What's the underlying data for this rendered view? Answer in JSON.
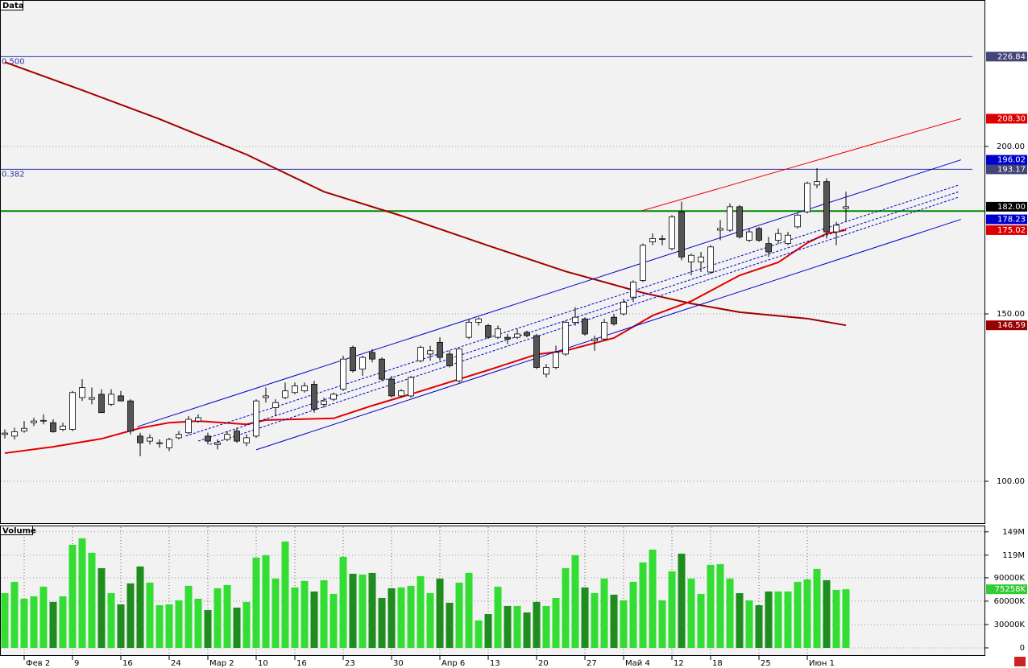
{
  "chart_data": [
    {
      "type": "candlestick",
      "title": "Data",
      "categories": [
        null,
        null,
        "Фев 2",
        null,
        null,
        null,
        null,
        "9",
        null,
        null,
        null,
        null,
        "16",
        null,
        null,
        null,
        null,
        "24",
        null,
        null,
        null,
        "Мар 2",
        null,
        null,
        null,
        null,
        "10",
        null,
        null,
        null,
        "16",
        null,
        null,
        null,
        null,
        "23",
        null,
        null,
        null,
        null,
        "30",
        null,
        null,
        null,
        null,
        "Апр 6",
        null,
        null,
        null,
        null,
        "13",
        null,
        null,
        null,
        null,
        "20",
        null,
        null,
        null,
        null,
        "27",
        null,
        null,
        null,
        "Май 4",
        null,
        null,
        null,
        null,
        "12",
        null,
        null,
        null,
        "18",
        null,
        null,
        null,
        null,
        "25",
        null,
        null,
        null,
        null,
        "Июн 1",
        null,
        null,
        null,
        null
      ],
      "open": [
        114.0,
        113.5,
        115.0,
        117.5,
        118.0,
        117.5,
        115.5,
        115.5,
        125.0,
        124.5,
        126.0,
        123.0,
        125.5,
        124.0,
        113.5,
        112.0,
        111.5,
        110.0,
        113.0,
        114.5,
        118.0,
        113.5,
        111.0,
        112.5,
        115.0,
        111.5,
        113.5,
        125.0,
        122.0,
        125.0,
        126.5,
        127.0,
        129.0,
        123.0,
        124.5,
        127.5,
        140.0,
        133.5,
        138.5,
        136.5,
        130.5,
        125.5,
        125.5,
        136.0,
        138.0,
        141.5,
        138.0,
        130.0,
        143.0,
        147.5,
        146.5,
        143.0,
        143.0,
        143.0,
        144.5,
        143.5,
        132.0,
        134.0,
        138.0,
        147.5,
        148.5,
        142.0,
        142.5,
        149.0,
        150.0,
        155.0,
        160.0,
        171.5,
        172.5,
        169.5,
        180.5,
        165.5,
        165.5,
        162.5,
        175.0,
        175.0,
        182.0,
        172.0,
        175.5,
        171.0,
        172.0,
        171.0,
        176.0,
        180.5,
        188.5,
        189.5,
        174.5,
        181.5
      ],
      "high": [
        115.5,
        116.0,
        118.0,
        119.0,
        120.0,
        118.5,
        117.5,
        127.0,
        130.5,
        128.0,
        127.5,
        127.5,
        127.0,
        124.5,
        114.5,
        114.0,
        112.5,
        113.0,
        115.0,
        119.5,
        120.0,
        114.5,
        112.5,
        115.0,
        116.0,
        114.0,
        124.5,
        128.0,
        124.5,
        129.5,
        129.5,
        129.5,
        130.0,
        125.0,
        126.5,
        137.5,
        140.5,
        137.5,
        139.5,
        137.0,
        131.5,
        127.5,
        131.5,
        140.5,
        140.5,
        143.0,
        139.0,
        139.5,
        148.5,
        149.0,
        147.0,
        146.5,
        144.0,
        145.5,
        145.0,
        144.0,
        135.0,
        140.5,
        148.0,
        152.0,
        149.0,
        143.5,
        148.5,
        150.0,
        154.5,
        160.0,
        171.0,
        174.0,
        173.5,
        179.5,
        183.5,
        168.0,
        168.5,
        170.5,
        178.0,
        183.0,
        182.5,
        175.5,
        176.0,
        173.0,
        175.5,
        174.5,
        180.0,
        189.5,
        193.5,
        190.5,
        177.5,
        186.5
      ],
      "low": [
        112.8,
        112.5,
        114.5,
        116.5,
        117.0,
        114.5,
        115.0,
        115.0,
        124.0,
        123.0,
        120.5,
        122.5,
        124.0,
        114.0,
        107.5,
        111.0,
        110.0,
        109.0,
        112.5,
        114.0,
        117.5,
        111.0,
        109.5,
        112.0,
        111.5,
        110.5,
        113.0,
        123.5,
        119.5,
        124.5,
        126.0,
        126.5,
        120.5,
        122.0,
        124.0,
        127.0,
        132.5,
        131.5,
        135.5,
        130.0,
        125.0,
        125.0,
        125.0,
        135.5,
        136.0,
        136.0,
        134.0,
        129.5,
        142.5,
        146.5,
        142.5,
        142.5,
        141.0,
        142.5,
        143.0,
        133.5,
        131.0,
        133.5,
        137.5,
        146.5,
        143.5,
        139.0,
        142.0,
        146.5,
        149.5,
        153.5,
        159.5,
        170.5,
        170.5,
        169.0,
        166.0,
        161.5,
        162.5,
        162.0,
        172.0,
        174.5,
        172.5,
        171.5,
        171.5,
        167.0,
        171.0,
        170.5,
        175.5,
        180.0,
        187.5,
        172.5,
        170.5,
        177.5
      ],
      "close": [
        114.4,
        114.8,
        115.8,
        118.0,
        118.2,
        114.8,
        116.5,
        126.5,
        128.0,
        125.0,
        120.5,
        126.0,
        124.0,
        115.0,
        111.5,
        113.0,
        111.5,
        112.5,
        114.0,
        118.5,
        119.0,
        112.0,
        111.5,
        114.0,
        112.0,
        113.0,
        124.0,
        125.5,
        123.5,
        127.0,
        128.5,
        128.5,
        121.5,
        124.0,
        126.0,
        136.5,
        133.0,
        137.0,
        136.5,
        130.5,
        125.5,
        127.0,
        131.0,
        140.0,
        139.0,
        137.0,
        134.5,
        139.5,
        147.5,
        148.5,
        143.0,
        145.5,
        142.5,
        144.0,
        143.5,
        134.0,
        134.0,
        138.5,
        147.5,
        149.0,
        144.0,
        142.5,
        147.5,
        147.0,
        153.5,
        159.5,
        170.5,
        172.5,
        172.5,
        179.0,
        167.0,
        167.5,
        167.0,
        170.0,
        175.5,
        182.0,
        173.0,
        174.5,
        172.0,
        168.5,
        174.0,
        173.5,
        179.5,
        189.0,
        189.5,
        174.5,
        176.5,
        182.0
      ],
      "last_close_label": "182.00",
      "last_close_color": "#000000",
      "up_color": "#ffffff",
      "down_color": "#555555",
      "xlim": [
        -0.5,
        101.33
      ],
      "ylim": [
        87.5,
        243.75
      ],
      "yticks": [
        {
          "value": 100,
          "label": "100.00"
        },
        {
          "value": 150,
          "label": "150.00"
        },
        {
          "value": 200,
          "label": "200.00"
        }
      ],
      "grid": true,
      "fib_levels": [
        {
          "label": "0.500",
          "value": 226.84,
          "color": "#3333aa",
          "tag_color": "#444477"
        },
        {
          "label": "0.382",
          "value": 193.17,
          "color": "#3333aa",
          "tag_color": "#444477"
        }
      ],
      "hlines": [
        {
          "value": 180.7,
          "color": "#008800"
        }
      ],
      "overlays": [
        {
          "color": "#a00000",
          "width": 2,
          "dash": false,
          "tag_color": "#990000",
          "x": [
            0,
            8,
            16,
            25,
            33,
            41,
            50,
            58,
            66,
            71,
            76,
            83,
            87
          ],
          "values": [
            225.2,
            216.8,
            208.2,
            197.6,
            186.5,
            179.3,
            170.4,
            162.7,
            156.3,
            153.1,
            150.5,
            148.6,
            146.59
          ]
        },
        {
          "color": "#e00000",
          "width": 2,
          "dash": false,
          "tag_color": "#dd0000",
          "x": [
            0,
            5,
            10,
            14,
            17,
            20,
            25,
            27,
            34,
            38,
            43,
            50,
            55,
            58,
            63,
            67,
            71,
            76,
            80,
            83,
            85,
            87
          ],
          "values": [
            108.4,
            110.3,
            112.7,
            115.9,
            117.5,
            118,
            117,
            118.3,
            118.8,
            122.6,
            126.9,
            133.2,
            137.9,
            139,
            142.8,
            149.5,
            153.8,
            161.5,
            165.4,
            171.2,
            174,
            175.02
          ]
        },
        {
          "color": "#ee0000",
          "width": 1,
          "dash": false,
          "tag_color": "#dd0000",
          "x": [
            65.9,
            98.9
          ],
          "values": [
            180.8,
            208.3
          ],
          "value_labels": [
            null,
            "208.30"
          ]
        },
        {
          "color": "#0000cc",
          "width": 1,
          "dash": false,
          "tag_color": "#0000cc",
          "x": [
            13.7,
            98.9
          ],
          "values": [
            116.3,
            196.02
          ]
        },
        {
          "color": "#0000cc",
          "width": 1,
          "dash": false,
          "tag_color": "#0000cc",
          "x": [
            26,
            98.9
          ],
          "values": [
            109.4,
            178.23
          ]
        },
        {
          "color": "#0000cc",
          "width": 1,
          "dash": true,
          "x": [
            18.7,
            98.7
          ],
          "values": [
            113.5,
            188.5
          ]
        },
        {
          "color": "#0000cc",
          "width": 1,
          "dash": true,
          "x": [
            20,
            98.7
          ],
          "values": [
            112,
            186.5
          ]
        },
        {
          "color": "#0000cc",
          "width": 1,
          "dash": true,
          "x": [
            21.2,
            98.7
          ],
          "values": [
            111,
            184.9
          ]
        }
      ]
    },
    {
      "type": "bar",
      "title": "Volume",
      "values": [
        70300,
        84800,
        63100,
        66200,
        78600,
        59000,
        66200,
        132400,
        140700,
        122100,
        102400,
        70300,
        55900,
        82800,
        104500,
        83800,
        54800,
        55900,
        61000,
        79700,
        63100,
        48600,
        76600,
        80700,
        51700,
        59000,
        115900,
        119000,
        89000,
        136600,
        77600,
        85900,
        72400,
        86900,
        69300,
        116900,
        95200,
        94100,
        96200,
        64100,
        76600,
        77600,
        79700,
        92100,
        70300,
        89000,
        57900,
        83800,
        96200,
        35200,
        43400,
        78600,
        53800,
        53800,
        45500,
        59000,
        53800,
        64100,
        102400,
        119000,
        77600,
        70300,
        89000,
        68300,
        61000,
        84800,
        109700,
        126200,
        61000,
        98300,
        121000,
        89000,
        69300,
        106600,
        107600,
        89000,
        70300,
        61000,
        54800,
        72400,
        72400,
        72400,
        84800,
        87900,
        101400,
        86900,
        74500,
        75258
      ],
      "up_color": "#33dd33",
      "down_color": "#1e8c1e",
      "ylim": [
        0,
        155000
      ],
      "yticks": [
        0,
        {
          "value": 30000,
          "label": "30000K"
        },
        {
          "value": 60000,
          "label": "60000K"
        },
        {
          "value": 90000,
          "label": "90000K"
        },
        {
          "value": 119000,
          "label": "119M"
        },
        {
          "value": 149000,
          "label": "149M"
        }
      ],
      "grid": true,
      "tags": [
        {
          "value": 75258,
          "label": "75258K",
          "color": "#33cc33"
        }
      ]
    }
  ]
}
